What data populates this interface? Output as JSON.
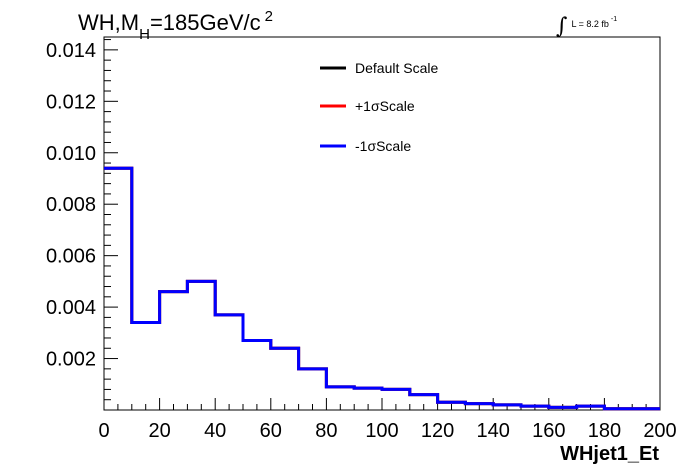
{
  "title": {
    "main": "WH,M",
    "subscript": "H",
    "rest": "=185GeV/c",
    "superscript": "2"
  },
  "luminosity": {
    "symbol": "∫",
    "text": "L = 8.2 fb",
    "superscript": "-1"
  },
  "chart_data": {
    "type": "histogram",
    "xlabel": "WHjet1_Et",
    "ylabel": "",
    "xlim": [
      0,
      200
    ],
    "ylim": [
      0,
      0.0145
    ],
    "x_ticks": [
      0,
      20,
      40,
      60,
      80,
      100,
      120,
      140,
      160,
      180,
      200
    ],
    "x_tick_labels": [
      "0",
      "20",
      "40",
      "60",
      "80",
      "100",
      "120",
      "140",
      "160",
      "180",
      "200"
    ],
    "y_ticks": [
      0.002,
      0.004,
      0.006,
      0.008,
      0.01,
      0.012,
      0.014
    ],
    "y_tick_labels": [
      "0.002",
      "0.004",
      "0.006",
      "0.008",
      "0.010",
      "0.012",
      "0.014"
    ],
    "bin_edges": [
      0,
      10,
      20,
      30,
      40,
      50,
      60,
      70,
      80,
      90,
      100,
      110,
      120,
      130,
      140,
      150,
      160,
      170,
      180,
      190,
      200
    ],
    "series": [
      {
        "name": "Default Scale",
        "color": "#000000",
        "values": [
          0.0094,
          0.0034,
          0.0046,
          0.005,
          0.0037,
          0.0027,
          0.0024,
          0.0016,
          0.0009,
          0.00085,
          0.0008,
          0.0006,
          0.0003,
          0.00025,
          0.0002,
          0.00015,
          0.0001,
          0.00015,
          5e-05,
          5e-05
        ]
      },
      {
        "name": "+1σScale",
        "color": "#ff0000",
        "values": [
          0.0094,
          0.0034,
          0.0046,
          0.005,
          0.0037,
          0.0027,
          0.0024,
          0.0016,
          0.0009,
          0.00085,
          0.0008,
          0.0006,
          0.0003,
          0.00025,
          0.0002,
          0.00015,
          0.0001,
          0.00015,
          5e-05,
          5e-05
        ]
      },
      {
        "name": "-1σScale",
        "color": "#0000ff",
        "values": [
          0.0094,
          0.0034,
          0.0046,
          0.005,
          0.0037,
          0.0027,
          0.0024,
          0.0016,
          0.0009,
          0.00085,
          0.0008,
          0.0006,
          0.0003,
          0.00025,
          0.0002,
          0.00015,
          0.0001,
          0.00015,
          5e-05,
          5e-05
        ]
      }
    ],
    "legend_position": "top-center",
    "grid": false
  }
}
